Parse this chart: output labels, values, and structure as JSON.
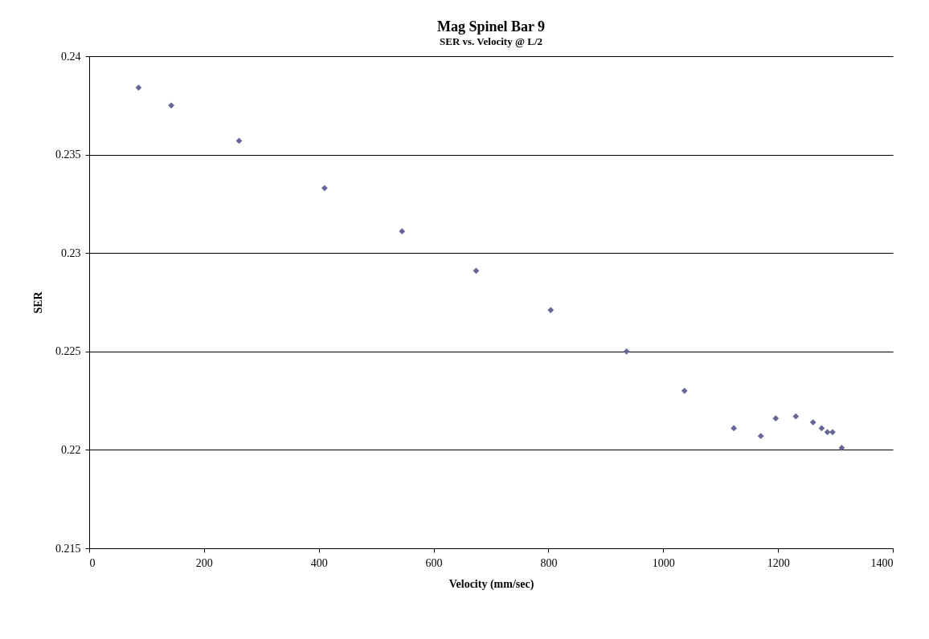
{
  "chart_data": {
    "type": "scatter",
    "title": "Mag Spinel Bar 9",
    "subtitle": "SER vs. Velocity @ L/2",
    "xlabel": "Velocity (mm/sec)",
    "ylabel": "SER",
    "x": [
      86,
      143,
      261,
      410,
      545,
      674,
      804,
      936,
      1037,
      1123,
      1170,
      1196,
      1231,
      1261,
      1276,
      1286,
      1295,
      1311
    ],
    "series": [
      {
        "color": "#666699",
        "values": [
          0.2384,
          0.2375,
          0.2357,
          0.2333,
          0.2311,
          0.2291,
          0.2271,
          0.225,
          0.223,
          0.2211,
          0.2207,
          0.2216,
          0.2217,
          0.2214,
          0.2211,
          0.2209,
          0.2209,
          0.2201
        ]
      }
    ],
    "xlim": [
      0,
      1400
    ],
    "xticks": [
      0,
      200,
      400,
      600,
      800,
      1000,
      1200,
      1400
    ],
    "ylim": [
      0.215,
      0.24
    ],
    "yticks": [
      0.215,
      0.22,
      0.225,
      0.23,
      0.235,
      0.24
    ],
    "grid": "y",
    "legend": false,
    "marker": "diamond"
  }
}
